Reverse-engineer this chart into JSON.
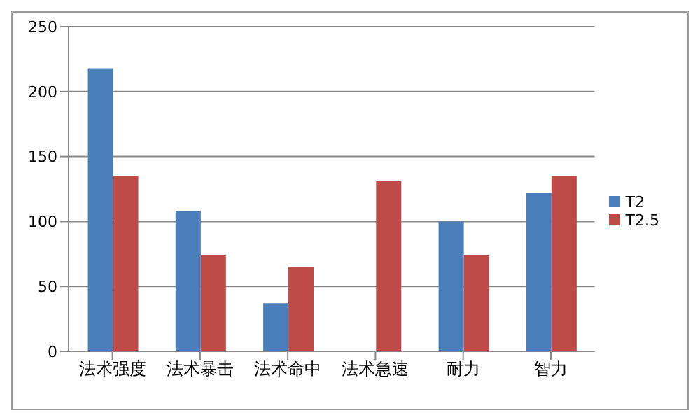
{
  "chart_data": {
    "type": "bar",
    "categories": [
      "法术强度",
      "法术暴击",
      "法术命中",
      "法术急速",
      "耐力",
      "智力"
    ],
    "series": [
      {
        "name": "T2",
        "color": "#4a7ebb",
        "values": [
          218,
          108,
          37,
          0,
          100,
          122
        ]
      },
      {
        "name": "T2.5",
        "color": "#be4b48",
        "values": [
          135,
          74,
          65,
          131,
          74,
          135
        ]
      }
    ],
    "ylim": [
      0,
      250
    ],
    "yticks": [
      0,
      50,
      100,
      150,
      200,
      250
    ],
    "grid": "y",
    "legend": "right"
  }
}
